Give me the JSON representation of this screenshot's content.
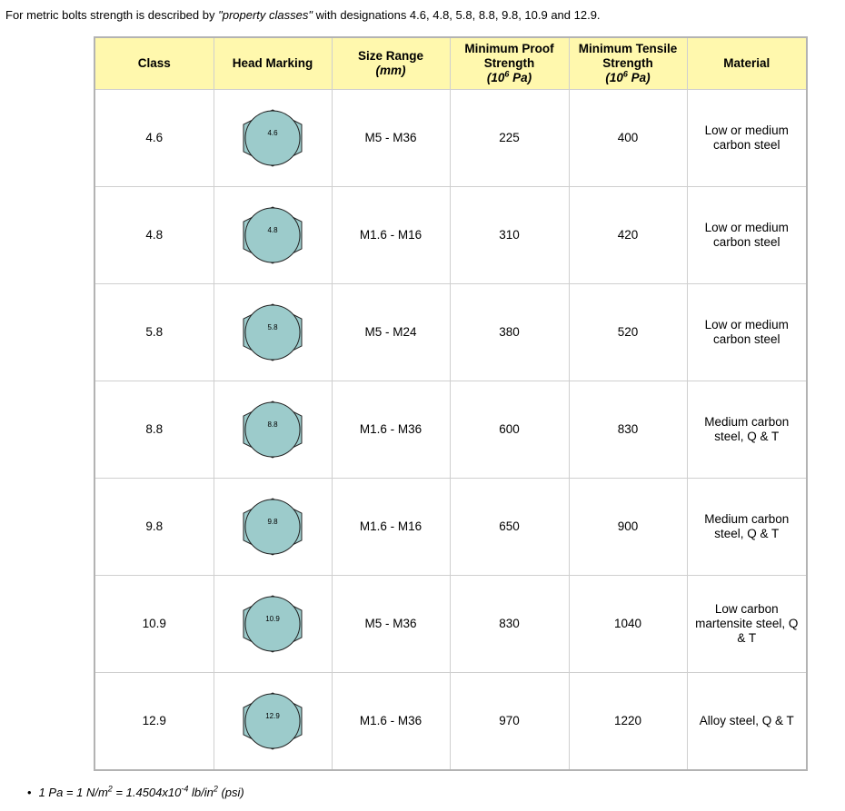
{
  "intro": {
    "before": "For metric bolts strength is described by ",
    "em": "\"property classes\"",
    "after": " with designations 4.6, 4.8, 5.8, 8.8, 9.8, 10.9 and 12.9."
  },
  "headers": {
    "class": "Class",
    "marking": "Head Marking",
    "size": "Size Range",
    "size_unit": "(mm)",
    "proof": "Minimum Proof Strength",
    "tensile": "Minimum Tensile Strength",
    "unit_base": "(10",
    "unit_exp": "6",
    "unit_rest": " Pa)",
    "material": "Material"
  },
  "rows": [
    {
      "class": "4.6",
      "marking": "4.6",
      "size": "M5 - M36",
      "proof": "225",
      "tensile": "400",
      "material": "Low or medium carbon steel"
    },
    {
      "class": "4.8",
      "marking": "4.8",
      "size": "M1.6 - M16",
      "proof": "310",
      "tensile": "420",
      "material": "Low or medium carbon steel"
    },
    {
      "class": "5.8",
      "marking": "5.8",
      "size": "M5 - M24",
      "proof": "380",
      "tensile": "520",
      "material": "Low or medium carbon steel"
    },
    {
      "class": "8.8",
      "marking": "8.8",
      "size": "M1.6 - M36",
      "proof": "600",
      "tensile": "830",
      "material": "Medium carbon steel, Q & T"
    },
    {
      "class": "9.8",
      "marking": "9.8",
      "size": "M1.6 - M16",
      "proof": "650",
      "tensile": "900",
      "material": "Medium carbon steel, Q & T"
    },
    {
      "class": "10.9",
      "marking": "10.9",
      "size": "M5 - M36",
      "proof": "830",
      "tensile": "1040",
      "material": "Low carbon martensite steel, Q & T"
    },
    {
      "class": "12.9",
      "marking": "12.9",
      "size": "M1.6 - M36",
      "proof": "970",
      "tensile": "1220",
      "material": "Alloy steel, Q & T"
    }
  ],
  "footnote": {
    "bullet": "•",
    "part1": "1 Pa = 1 N/m",
    "sup1": "2",
    "part2": " = 1.4504x10",
    "sup2": "-4",
    "part3": " lb/in",
    "sup3": "2",
    "part4": " (psi)"
  },
  "colors": {
    "header_bg": "#fff8ad",
    "hex_fill": "#9ccbcb",
    "border": "#b3b3b3"
  }
}
